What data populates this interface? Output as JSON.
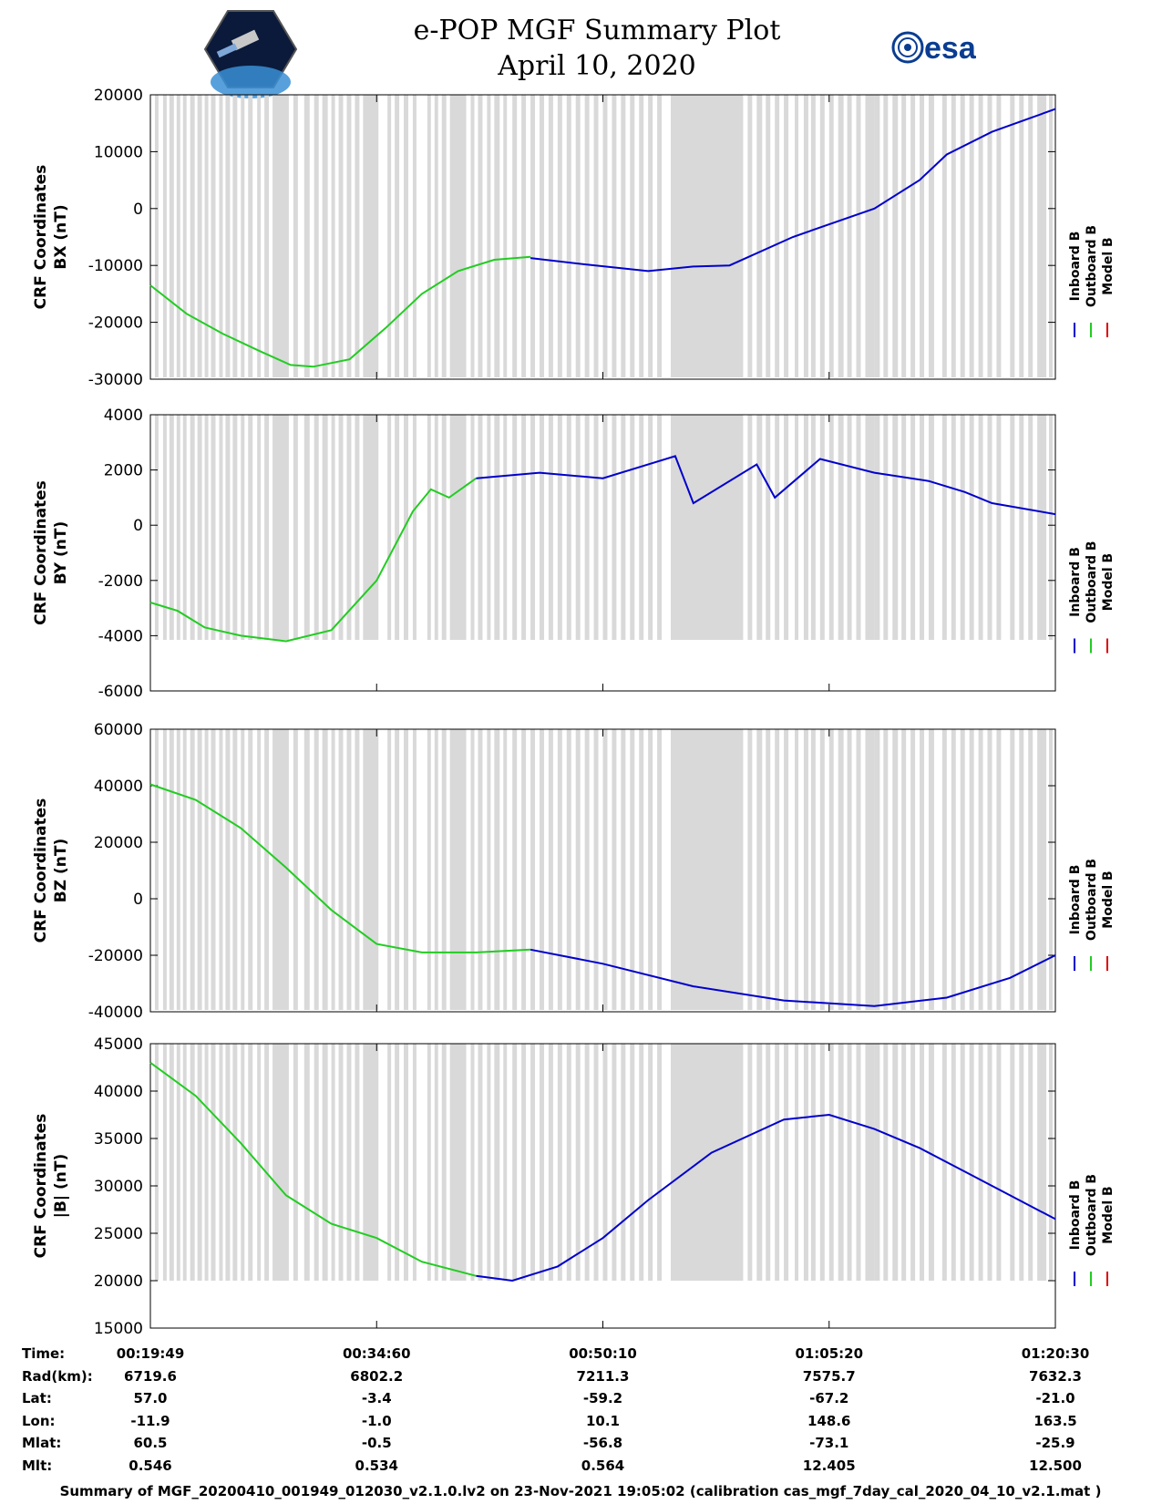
{
  "header": {
    "title_line1": "e-POP MGF Summary Plot",
    "title_line2": "April 10, 2020",
    "left_logo_icon": "cassiope-satellite-logo-icon",
    "right_logo_icon": "esa-logo-icon",
    "right_logo_text": "esa"
  },
  "colors": {
    "inboard": "#0000cc",
    "outboard": "#22cc22",
    "model": "#dd0000",
    "gap_band": "#d9d9d9"
  },
  "chart_data": [
    {
      "type": "line",
      "title": "",
      "ylabel_line1": "CRF Coordinates",
      "ylabel_line2": "BX (nT)",
      "ylim": [
        -30000,
        20000
      ],
      "yticks": [
        20000,
        10000,
        0,
        -10000,
        -20000,
        -30000
      ],
      "legend": [
        "Inboard B",
        "Outboard B",
        "Model B"
      ],
      "series": [
        {
          "name": "Outboard B",
          "x": [
            0,
            0.04,
            0.08,
            0.12,
            0.155,
            0.18,
            0.22,
            0.26,
            0.3,
            0.34,
            0.38,
            0.42
          ],
          "y": [
            -13500,
            -18500,
            -22000,
            -25000,
            -27500,
            -27800,
            -26500,
            -21000,
            -15000,
            -11000,
            -9000,
            -8500
          ]
        },
        {
          "name": "Inboard B",
          "x": [
            0.42,
            0.48,
            0.55,
            0.6,
            0.64,
            0.71,
            0.8,
            0.85,
            0.88,
            0.93,
            1.0
          ],
          "y": [
            -8700,
            -9800,
            -11000,
            -10200,
            -10000,
            -5000,
            0,
            5000,
            9500,
            13500,
            17500
          ]
        }
      ]
    },
    {
      "type": "line",
      "title": "",
      "ylabel_line1": "CRF Coordinates",
      "ylabel_line2": "BY (nT)",
      "ylim": [
        -6000,
        4000
      ],
      "yticks": [
        4000,
        2000,
        0,
        -2000,
        -4000,
        -6000
      ],
      "legend": [
        "Inboard B",
        "Outboard B",
        "Model B"
      ],
      "series": [
        {
          "name": "Outboard B",
          "x": [
            0,
            0.03,
            0.06,
            0.1,
            0.15,
            0.2,
            0.25,
            0.29,
            0.31,
            0.33,
            0.36
          ],
          "y": [
            -2800,
            -3100,
            -3700,
            -4000,
            -4200,
            -3800,
            -2000,
            500,
            1300,
            1000,
            1700
          ]
        },
        {
          "name": "Inboard B",
          "x": [
            0.36,
            0.43,
            0.5,
            0.58,
            0.6,
            0.67,
            0.69,
            0.74,
            0.8,
            0.86,
            0.9,
            0.93,
            1.0
          ],
          "y": [
            1700,
            1900,
            1700,
            2500,
            800,
            2200,
            1000,
            2400,
            1900,
            1600,
            1200,
            800,
            400
          ]
        }
      ]
    },
    {
      "type": "line",
      "title": "",
      "ylabel_line1": "CRF Coordinates",
      "ylabel_line2": "BZ (nT)",
      "ylim": [
        -40000,
        60000
      ],
      "yticks": [
        60000,
        40000,
        20000,
        0,
        -20000,
        -40000
      ],
      "legend": [
        "Inboard B",
        "Outboard B",
        "Model B"
      ],
      "series": [
        {
          "name": "Outboard B",
          "x": [
            0,
            0.05,
            0.1,
            0.15,
            0.2,
            0.25,
            0.3,
            0.36,
            0.42
          ],
          "y": [
            40500,
            35000,
            25000,
            11000,
            -4000,
            -16000,
            -19000,
            -19000,
            -18000
          ]
        },
        {
          "name": "Inboard B",
          "x": [
            0.42,
            0.5,
            0.6,
            0.7,
            0.8,
            0.88,
            0.95,
            1.0
          ],
          "y": [
            -18000,
            -23000,
            -31000,
            -36000,
            -38000,
            -35000,
            -28000,
            -20000
          ]
        }
      ]
    },
    {
      "type": "line",
      "title": "",
      "ylabel_line1": "CRF Coordinates",
      "ylabel_line2": "|B| (nT)",
      "ylim": [
        15000,
        45000
      ],
      "yticks": [
        45000,
        40000,
        35000,
        30000,
        25000,
        20000,
        15000
      ],
      "legend": [
        "Inboard B",
        "Outboard B",
        "Model B"
      ],
      "series": [
        {
          "name": "Outboard B",
          "x": [
            0,
            0.05,
            0.1,
            0.15,
            0.2,
            0.25,
            0.3,
            0.36
          ],
          "y": [
            43000,
            39500,
            34500,
            29000,
            26000,
            24500,
            22000,
            20500
          ]
        },
        {
          "name": "Inboard B",
          "x": [
            0.36,
            0.4,
            0.45,
            0.5,
            0.55,
            0.62,
            0.7,
            0.75,
            0.8,
            0.85,
            0.9,
            0.95,
            1.0
          ],
          "y": [
            20500,
            20000,
            21500,
            24500,
            28500,
            33500,
            37000,
            37500,
            36000,
            34000,
            31500,
            29000,
            26500
          ]
        }
      ]
    }
  ],
  "gap_bands": [
    [
      0.005,
      0.009
    ],
    [
      0.014,
      0.018
    ],
    [
      0.021,
      0.026
    ],
    [
      0.029,
      0.033
    ],
    [
      0.036,
      0.04
    ],
    [
      0.044,
      0.049
    ],
    [
      0.052,
      0.057
    ],
    [
      0.06,
      0.064
    ],
    [
      0.067,
      0.072
    ],
    [
      0.076,
      0.08
    ],
    [
      0.083,
      0.088
    ],
    [
      0.091,
      0.096
    ],
    [
      0.1,
      0.104
    ],
    [
      0.108,
      0.113
    ],
    [
      0.118,
      0.122
    ],
    [
      0.126,
      0.131
    ],
    [
      0.135,
      0.141
    ],
    [
      0.14,
      0.153
    ],
    [
      0.158,
      0.163
    ],
    [
      0.17,
      0.176
    ],
    [
      0.181,
      0.186
    ],
    [
      0.19,
      0.196
    ],
    [
      0.2,
      0.204
    ],
    [
      0.208,
      0.213
    ],
    [
      0.217,
      0.222
    ],
    [
      0.226,
      0.231
    ],
    [
      0.235,
      0.252
    ],
    [
      0.262,
      0.266
    ],
    [
      0.27,
      0.275
    ],
    [
      0.28,
      0.285
    ],
    [
      0.29,
      0.294
    ],
    [
      0.306,
      0.31
    ],
    [
      0.314,
      0.318
    ],
    [
      0.322,
      0.327
    ],
    [
      0.331,
      0.349
    ],
    [
      0.354,
      0.358
    ],
    [
      0.362,
      0.367
    ],
    [
      0.372,
      0.376
    ],
    [
      0.38,
      0.386
    ],
    [
      0.39,
      0.394
    ],
    [
      0.4,
      0.405
    ],
    [
      0.41,
      0.415
    ],
    [
      0.42,
      0.425
    ],
    [
      0.43,
      0.435
    ],
    [
      0.44,
      0.445
    ],
    [
      0.45,
      0.455
    ],
    [
      0.46,
      0.465
    ],
    [
      0.47,
      0.475
    ],
    [
      0.48,
      0.485
    ],
    [
      0.49,
      0.495
    ],
    [
      0.5,
      0.505
    ],
    [
      0.51,
      0.515
    ],
    [
      0.52,
      0.525
    ],
    [
      0.53,
      0.535
    ],
    [
      0.54,
      0.545
    ],
    [
      0.55,
      0.555
    ],
    [
      0.56,
      0.565
    ],
    [
      0.575,
      0.655
    ],
    [
      0.66,
      0.665
    ],
    [
      0.67,
      0.676
    ],
    [
      0.68,
      0.685
    ],
    [
      0.69,
      0.695
    ],
    [
      0.7,
      0.705
    ],
    [
      0.712,
      0.716
    ],
    [
      0.722,
      0.727
    ],
    [
      0.73,
      0.735
    ],
    [
      0.74,
      0.745
    ],
    [
      0.75,
      0.755
    ],
    [
      0.76,
      0.766
    ],
    [
      0.77,
      0.775
    ],
    [
      0.78,
      0.785
    ],
    [
      0.79,
      0.8
    ],
    [
      0.8,
      0.806
    ],
    [
      0.81,
      0.815
    ],
    [
      0.82,
      0.826
    ],
    [
      0.83,
      0.835
    ],
    [
      0.84,
      0.845
    ],
    [
      0.85,
      0.855
    ],
    [
      0.86,
      0.866
    ],
    [
      0.875,
      0.88
    ],
    [
      0.885,
      0.89
    ],
    [
      0.895,
      0.9
    ],
    [
      0.905,
      0.91
    ],
    [
      0.915,
      0.92
    ],
    [
      0.925,
      0.93
    ],
    [
      0.935,
      0.94
    ],
    [
      0.95,
      0.955
    ],
    [
      0.96,
      0.965
    ],
    [
      0.97,
      0.975
    ],
    [
      0.98,
      0.99
    ],
    [
      0.993,
      0.997
    ]
  ],
  "time_axis": {
    "row_labels": [
      "Time:",
      "Rad(km):",
      "Lat:",
      "Lon:",
      "Mlat:",
      "Mlt:"
    ],
    "columns": [
      {
        "Time": "00:19:49",
        "Rad": "6719.6",
        "Lat": "57.0",
        "Lon": "-11.9",
        "Mlat": "60.5",
        "Mlt": "0.546"
      },
      {
        "Time": "00:34:60",
        "Rad": "6802.2",
        "Lat": "-3.4",
        "Lon": "-1.0",
        "Mlat": "-0.5",
        "Mlt": "0.534"
      },
      {
        "Time": "00:50:10",
        "Rad": "7211.3",
        "Lat": "-59.2",
        "Lon": "10.1",
        "Mlat": "-56.8",
        "Mlt": "0.564"
      },
      {
        "Time": "01:05:20",
        "Rad": "7575.7",
        "Lat": "-67.2",
        "Lon": "148.6",
        "Mlat": "-73.1",
        "Mlt": "12.405"
      },
      {
        "Time": "01:20:30",
        "Rad": "7632.3",
        "Lat": "-21.0",
        "Lon": "163.5",
        "Mlat": "-25.9",
        "Mlt": "12.500"
      }
    ]
  },
  "footer": {
    "text": "Summary of MGF_20200410_001949_012030_v2.1.0.lv2 on 23-Nov-2021 19:05:02 (calibration cas_mgf_7day_cal_2020_04_10_v2.1.mat )"
  }
}
